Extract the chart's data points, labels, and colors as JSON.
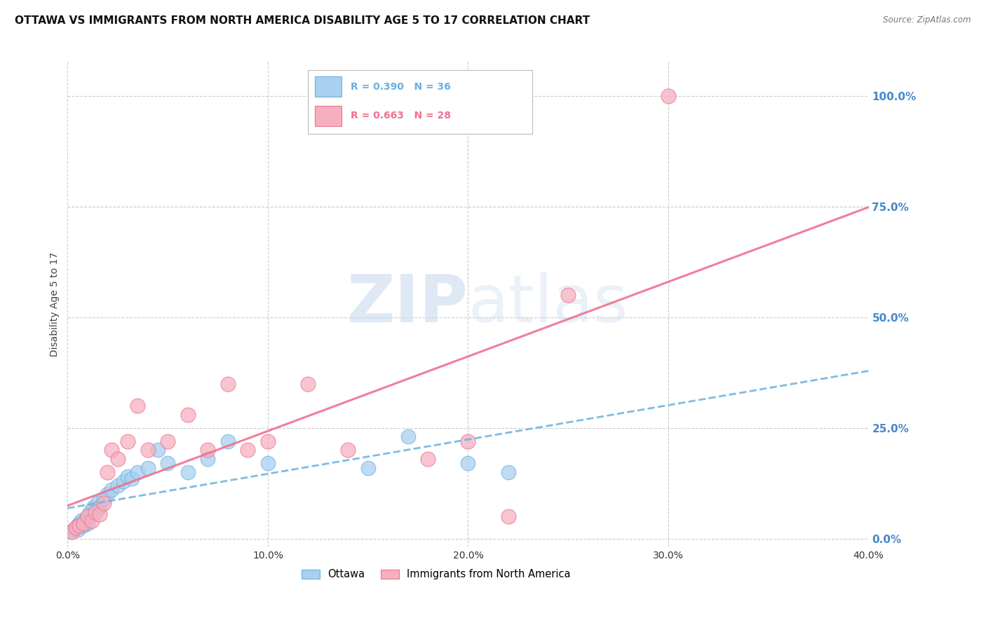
{
  "title": "OTTAWA VS IMMIGRANTS FROM NORTH AMERICA DISABILITY AGE 5 TO 17 CORRELATION CHART",
  "source": "Source: ZipAtlas.com",
  "ylabel": "Disability Age 5 to 17",
  "x_tick_values": [
    0.0,
    10.0,
    20.0,
    30.0,
    40.0
  ],
  "y_tick_values": [
    0.0,
    25.0,
    50.0,
    75.0,
    100.0
  ],
  "xlim": [
    0.0,
    40.0
  ],
  "ylim": [
    -2.0,
    108.0
  ],
  "watermark_zip": "ZIP",
  "watermark_atlas": "atlas",
  "legend_entry1": "R = 0.390   N = 36",
  "legend_entry2": "R = 0.663   N = 28",
  "legend_label1": "Ottawa",
  "legend_label2": "Immigrants from North America",
  "series1_color": "#a8d0f0",
  "series2_color": "#f5b0c0",
  "trendline1_color": "#6ab0e0",
  "trendline2_color": "#f07090",
  "ottawa_x": [
    0.2,
    0.3,
    0.4,
    0.5,
    0.5,
    0.6,
    0.7,
    0.8,
    0.9,
    1.0,
    1.0,
    1.1,
    1.2,
    1.3,
    1.4,
    1.5,
    1.6,
    1.8,
    2.0,
    2.2,
    2.5,
    2.8,
    3.0,
    3.2,
    3.5,
    4.0,
    4.5,
    5.0,
    6.0,
    7.0,
    8.0,
    10.0,
    15.0,
    17.0,
    20.0,
    22.0
  ],
  "ottawa_y": [
    1.5,
    2.0,
    2.5,
    3.0,
    2.0,
    3.5,
    4.0,
    3.0,
    4.5,
    5.0,
    3.5,
    6.0,
    5.5,
    7.0,
    6.0,
    8.0,
    7.0,
    9.0,
    10.0,
    11.0,
    12.0,
    13.0,
    14.0,
    13.5,
    15.0,
    16.0,
    20.0,
    17.0,
    15.0,
    18.0,
    22.0,
    17.0,
    16.0,
    23.0,
    17.0,
    15.0
  ],
  "immigrants_x": [
    0.2,
    0.4,
    0.6,
    0.8,
    1.0,
    1.2,
    1.4,
    1.6,
    1.8,
    2.0,
    2.2,
    2.5,
    3.0,
    3.5,
    4.0,
    5.0,
    6.0,
    7.0,
    8.0,
    9.0,
    10.0,
    12.0,
    14.0,
    18.0,
    20.0,
    22.0,
    25.0,
    30.0
  ],
  "immigrants_y": [
    1.5,
    2.5,
    3.0,
    3.5,
    5.0,
    4.0,
    6.0,
    5.5,
    8.0,
    15.0,
    20.0,
    18.0,
    22.0,
    30.0,
    20.0,
    22.0,
    28.0,
    20.0,
    35.0,
    20.0,
    22.0,
    35.0,
    20.0,
    18.0,
    22.0,
    5.0,
    55.0,
    100.0
  ],
  "background_color": "#ffffff",
  "grid_color": "#cccccc",
  "title_fontsize": 11,
  "axis_label_fontsize": 10,
  "tick_fontsize": 10,
  "right_tick_color": "#4488cc",
  "figsize": [
    14.06,
    8.92
  ],
  "dpi": 100
}
